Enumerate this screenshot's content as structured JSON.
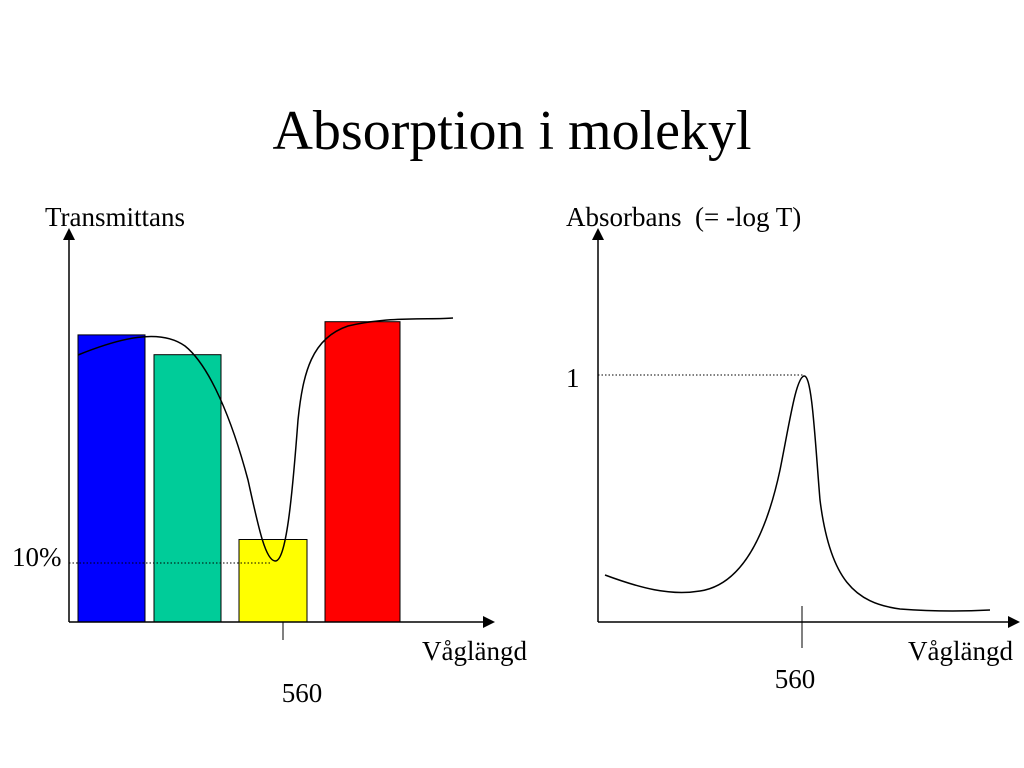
{
  "slide": {
    "title": "Absorption i molekyl"
  },
  "left_panel": {
    "y_axis_label": "Transmittans",
    "x_axis_label": "Våglängd",
    "x_tick_label": "560",
    "level_label": "10%",
    "bars": [
      {
        "color": "#0000ff",
        "relative_height": 0.87
      },
      {
        "color": "#00cc99",
        "relative_height": 0.81
      },
      {
        "color": "#ffff00",
        "relative_height": 0.25
      },
      {
        "color": "#ff0000",
        "relative_height": 0.91
      }
    ]
  },
  "right_panel": {
    "y_axis_label": "Absorbans  (= -log T)",
    "x_axis_label": "Våglängd",
    "x_tick_label": "560",
    "y_tick_label": "1"
  }
}
